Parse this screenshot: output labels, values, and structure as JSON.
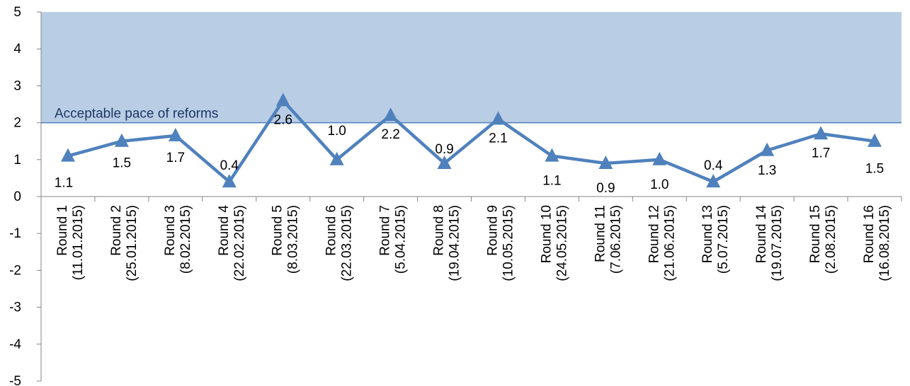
{
  "chart_data": {
    "type": "line",
    "title": "",
    "xlabel": "",
    "ylabel": "",
    "ylim": [
      -5,
      5
    ],
    "yticks": [
      5,
      4,
      3,
      2,
      1,
      0,
      -1,
      -2,
      -3,
      -4,
      -5
    ],
    "grid": false,
    "legend": "none",
    "categories": [
      [
        "Round 1",
        "(11.01.2015)"
      ],
      [
        "Round 2",
        "(25.01.2015)"
      ],
      [
        "Round 3",
        "(8.02.2015)"
      ],
      [
        "Round 4",
        "(22.02.2015)"
      ],
      [
        "Round 5",
        "(8.03.2015)"
      ],
      [
        "Round 6",
        "(22.03.2015)"
      ],
      [
        "Round 7",
        "(5.04.2015)"
      ],
      [
        "Round 8",
        "(19.04.2015)"
      ],
      [
        "Round 9",
        "(10.05.2015)"
      ],
      [
        "Round 10",
        "(24.05.2015)"
      ],
      [
        "Round 11",
        "(7.06.2015)"
      ],
      [
        "Round 12",
        "(21.06.2015)"
      ],
      [
        "Round 13",
        "(5.07.2015)"
      ],
      [
        "Round 14",
        "(19.07.2015)"
      ],
      [
        "Round 15",
        "(2.08.2015)"
      ],
      [
        "Round 16",
        "(16.08.2015)"
      ]
    ],
    "series": [
      {
        "values": [
          1.1,
          1.5,
          1.65,
          0.4,
          2.6,
          1.0,
          2.2,
          0.9,
          2.1,
          1.1,
          0.9,
          1.0,
          0.4,
          1.25,
          1.7,
          1.5
        ],
        "data_labels": [
          "1.1",
          "1.5",
          "1.7",
          "0.4",
          "2.6",
          "1.0",
          "2.2",
          "0.9",
          "2.1",
          "1.1",
          "0.9",
          "1.0",
          "0.4",
          "1.3",
          "1.7",
          "1.5"
        ],
        "color": "#4f81bd",
        "marker": "triangle"
      }
    ],
    "band": {
      "from": 2,
      "to": 5,
      "label": "Acceptable pace of reforms",
      "fill": "#b9cde5",
      "line_color": "#4f81bd"
    }
  }
}
